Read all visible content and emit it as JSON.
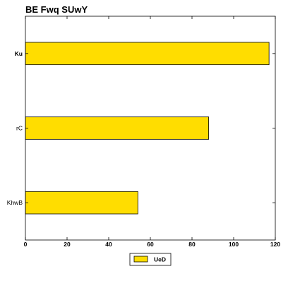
{
  "chart_data": {
    "type": "bar",
    "orientation": "horizontal",
    "title": "BE  Fwq SUwY",
    "xlabel": "",
    "ylabel": "",
    "categories": [
      "Ku",
      "rC",
      "KhwB"
    ],
    "bold_categories": [
      "Ku"
    ],
    "series": [
      {
        "name": "UeD",
        "values": [
          117,
          88,
          54
        ],
        "color": "#FFDD00"
      }
    ],
    "xlim": [
      0,
      120
    ],
    "xticks": [
      0,
      20,
      40,
      60,
      80,
      100,
      120
    ],
    "grid": false,
    "legend_position": "bottom-center"
  }
}
